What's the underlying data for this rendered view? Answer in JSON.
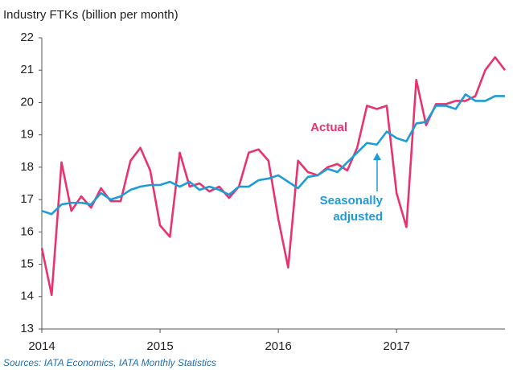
{
  "chart_data": {
    "type": "line",
    "title": "Industry FTKs (billion per month)",
    "source": "Sources: IATA Economics, IATA Monthly Statistics",
    "categories": [
      "2014",
      null,
      null,
      null,
      null,
      null,
      null,
      null,
      null,
      null,
      null,
      null,
      "2015",
      null,
      null,
      null,
      null,
      null,
      null,
      null,
      null,
      null,
      null,
      null,
      "2016",
      null,
      null,
      null,
      null,
      null,
      null,
      null,
      null,
      null,
      null,
      null,
      "2017",
      null,
      null,
      null,
      null,
      null,
      null,
      null,
      null,
      null,
      null,
      null
    ],
    "series": [
      {
        "name": "Actual",
        "color": "#e8336e",
        "values": [
          15.5,
          14.05,
          18.15,
          16.65,
          17.1,
          16.75,
          17.35,
          16.95,
          16.95,
          18.2,
          18.6,
          17.9,
          16.2,
          15.85,
          18.45,
          17.4,
          17.5,
          17.25,
          17.4,
          17.05,
          17.4,
          18.45,
          18.55,
          18.2,
          16.4,
          14.9,
          18.2,
          17.85,
          17.75,
          18.0,
          18.1,
          17.9,
          18.6,
          19.9,
          19.8,
          19.9,
          17.2,
          16.15,
          20.7,
          19.3,
          19.95,
          19.95,
          20.05,
          20.05,
          20.2,
          21.0,
          21.4,
          21.0
        ]
      },
      {
        "name": "Seasonally adjusted",
        "color": "#1e9cd7",
        "values": [
          16.65,
          16.55,
          16.85,
          16.9,
          16.9,
          16.85,
          17.2,
          17.0,
          17.1,
          17.3,
          17.4,
          17.45,
          17.45,
          17.55,
          17.4,
          17.55,
          17.3,
          17.4,
          17.3,
          17.15,
          17.4,
          17.4,
          17.6,
          17.65,
          17.75,
          17.55,
          17.35,
          17.7,
          17.75,
          17.95,
          17.85,
          18.15,
          18.45,
          18.75,
          18.7,
          19.1,
          18.9,
          18.8,
          19.35,
          19.4,
          19.9,
          19.9,
          19.8,
          20.25,
          20.05,
          20.05,
          20.2,
          20.2
        ]
      }
    ],
    "ylim": [
      13,
      22
    ],
    "yticks": [
      13,
      14,
      15,
      16,
      17,
      18,
      19,
      20,
      21,
      22
    ],
    "grid": false
  }
}
